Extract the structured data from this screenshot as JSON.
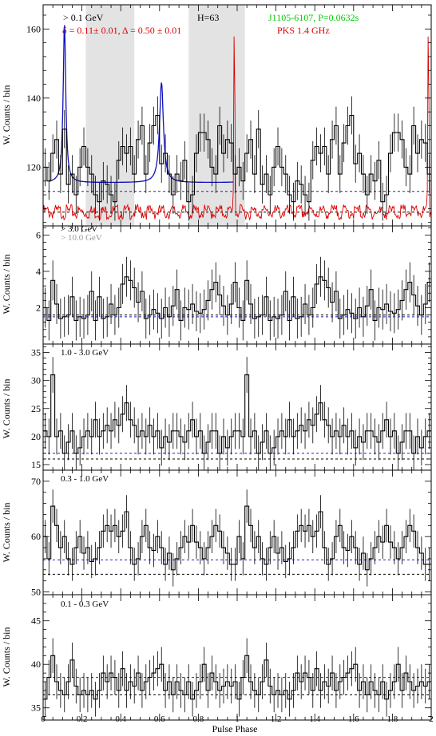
{
  "figure": {
    "x_axis_label": "Pulse Phase",
    "x_ticks": [
      "0",
      "0.2",
      "0.4",
      "0.6",
      "0.8",
      "1",
      "1.2",
      "1.4",
      "1.6",
      "1.8",
      "2"
    ]
  },
  "chart_data": [
    {
      "type": "line",
      "panel": "0.1 GeV",
      "ylabel": "W. Counts / bin",
      "ylim": [
        103,
        167
      ],
      "yticks": [
        "120",
        "140",
        "160"
      ],
      "labels": {
        "energy": "> 0.1 GeV",
        "htest": "H=63",
        "pulsar": "J1105-6107, P=0.0632s",
        "radio": "PKS 1.4 GHz",
        "fit": "δ = 0.11± 0.01, Δ = 0.50 ± 0.01"
      },
      "colors": {
        "fit": "#1010c0",
        "radio": "#dd0000",
        "pulsar": "#00cc00",
        "shade": "#e3e3e3"
      },
      "shaded_phase_ranges": [
        [
          0.22,
          0.47
        ],
        [
          0.75,
          1.04
        ]
      ],
      "background_levels": {
        "blue": 113,
        "black": 107
      },
      "x": [
        0.0,
        0.02,
        0.04,
        0.06,
        0.08,
        0.1,
        0.12,
        0.14,
        0.16,
        0.18,
        0.2,
        0.22,
        0.24,
        0.26,
        0.28,
        0.3,
        0.32,
        0.34,
        0.36,
        0.38,
        0.4,
        0.42,
        0.44,
        0.46,
        0.48,
        0.5,
        0.52,
        0.54,
        0.56,
        0.58,
        0.6,
        0.62,
        0.64,
        0.66,
        0.68,
        0.7,
        0.72,
        0.74,
        0.76,
        0.78,
        0.8,
        0.82,
        0.84,
        0.86,
        0.88,
        0.9,
        0.92,
        0.94,
        0.96,
        0.98
      ],
      "series": [
        {
          "name": "> 0.1 GeV",
          "values": [
            120,
            116,
            124,
            128,
            118,
            131,
            115,
            118,
            112,
            120,
            126,
            120,
            118,
            112,
            110,
            116,
            115,
            112,
            110,
            122,
            126,
            124,
            126,
            118,
            128,
            132,
            118,
            127,
            132,
            135,
            121,
            124,
            118,
            112,
            118,
            116,
            122,
            110,
            112,
            124,
            130,
            130,
            128,
            120,
            118,
            132,
            124,
            128,
            127,
            118
          ]
        }
      ],
      "error_bar": 5.5
    },
    {
      "type": "line",
      "panel": "3.0 GeV",
      "ylabel": "W. Counts / bin",
      "ylim": [
        0,
        6.5
      ],
      "yticks": [
        "2",
        "4",
        "6"
      ],
      "labels": {
        "energy": "> 3.0 GeV",
        "energy_high": "> 10.0 GeV"
      },
      "background_levels": {
        "blue": 1.5,
        "black": 1.6
      },
      "series": [
        {
          "name": "> 3.0 GeV",
          "values": [
            2.0,
            1.3,
            3.5,
            2.2,
            1.4,
            1.5,
            1.6,
            2.6,
            1.3,
            1.5,
            1.4,
            1.6,
            2.9,
            1.3,
            2.6,
            1.4,
            1.5,
            2.2,
            1.6,
            2.0,
            3.3,
            3.7,
            3.5,
            3.1,
            2.3,
            2.9,
            1.4,
            1.6,
            1.9,
            1.7,
            1.4,
            2.0,
            1.5,
            2.1,
            3.0,
            1.3,
            2.0,
            1.9,
            2.2,
            1.8,
            1.7,
            1.9,
            2.4,
            3.0,
            3.4,
            2.7,
            2.1,
            1.6,
            2.2,
            3.4
          ]
        }
      ],
      "error_bar": 1.1
    },
    {
      "type": "line",
      "panel": "1.0 - 3.0 GeV",
      "ylabel": "W. Counts / bin",
      "ylim": [
        14,
        36.5
      ],
      "yticks": [
        "15",
        "20",
        "25",
        "30",
        "35"
      ],
      "labels": {
        "energy": "1.0 - 3.0 GeV"
      },
      "background_levels": {
        "blue": 17,
        "black": 16
      },
      "series": [
        {
          "name": "1.0 - 3.0 GeV",
          "values": [
            21,
            20,
            31,
            20,
            21,
            17,
            19,
            21,
            17,
            18,
            20,
            21,
            20,
            23,
            20,
            21,
            22,
            21,
            23,
            22,
            24,
            26,
            23,
            22,
            20,
            21,
            20,
            22,
            20,
            21,
            18,
            20,
            19,
            21,
            21,
            20,
            19,
            21,
            23,
            20,
            21,
            17,
            19,
            21,
            21,
            17,
            20,
            18,
            20,
            21
          ]
        }
      ],
      "error_bar": 3.2
    },
    {
      "type": "line",
      "panel": "0.3 - 1.0 GeV",
      "ylabel": "W. Counts / bin",
      "ylim": [
        49.5,
        72
      ],
      "yticks": [
        "50",
        "60",
        "70"
      ],
      "labels": {
        "energy": "0.3 - 1.0 GeV"
      },
      "background_levels": {
        "blue": 55.8,
        "black": 53.2
      },
      "series": [
        {
          "name": "0.3 - 1.0 GeV",
          "values": [
            60,
            56,
            65.5,
            62,
            58,
            60,
            56,
            55,
            58,
            60,
            57,
            58,
            55.5,
            56,
            58,
            61,
            62,
            61,
            62,
            60,
            61,
            64.5,
            58,
            55,
            56,
            60,
            62,
            58,
            57.5,
            60,
            58,
            55,
            57,
            54,
            56,
            58,
            60,
            59,
            62,
            59,
            58,
            56,
            58,
            60,
            62,
            61,
            58,
            57,
            55,
            55
          ]
        }
      ],
      "error_bar": 3.0
    },
    {
      "type": "line",
      "panel": "0.1 - 0.3 GeV",
      "ylabel": "W. Counts / bin",
      "ylim": [
        33.6,
        48
      ],
      "yticks": [
        "35",
        "40",
        "45"
      ],
      "labels": {
        "energy": "0.1 - 0.3 GeV"
      },
      "background_levels": {
        "blue": 38.5,
        "black": 36.5
      },
      "series": [
        {
          "name": "0.1 - 0.3 GeV",
          "values": [
            36,
            38.5,
            41,
            38,
            37,
            36.5,
            38,
            40.5,
            37.5,
            36.5,
            37,
            36.5,
            37,
            36,
            37,
            39,
            38,
            39,
            38.5,
            37,
            39.5,
            37,
            38,
            37.5,
            39,
            37,
            38,
            38.5,
            39,
            39.5,
            40,
            37,
            38,
            36.5,
            38,
            37,
            36.5,
            38,
            36,
            37,
            38,
            40,
            37,
            39,
            38,
            37,
            37.5,
            38,
            37.5,
            38
          ]
        }
      ],
      "error_bar": 2.0
    }
  ]
}
